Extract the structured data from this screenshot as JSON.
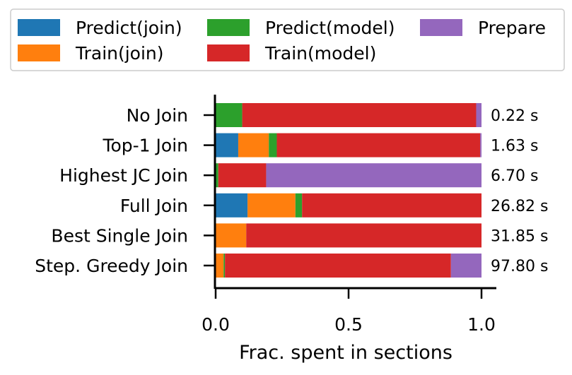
{
  "chart_data": {
    "type": "bar",
    "orientation": "horizontal",
    "stacked": true,
    "title": "",
    "xlabel": "Frac. spent in sections",
    "ylabel": "",
    "xlim": [
      0,
      1.05
    ],
    "xticks": [
      {
        "value": 0.0,
        "label": "0.0"
      },
      {
        "value": 0.5,
        "label": "0.5"
      },
      {
        "value": 1.0,
        "label": "1.0"
      }
    ],
    "legend_position": "top",
    "categories": [
      "No Join",
      "Top-1 Join",
      "Highest JC Join",
      "Full Join",
      "Best Single Join",
      "Step. Greedy Join"
    ],
    "runtime_labels": [
      "0.22 s",
      "1.63 s",
      "6.70 s",
      "26.82 s",
      "31.85 s",
      "97.80 s"
    ],
    "series": [
      {
        "name": "Predict(join)",
        "color": "#1f77b4",
        "values": [
          0.0,
          0.085,
          0.0,
          0.12,
          0.0,
          0.0
        ]
      },
      {
        "name": "Train(join)",
        "color": "#ff7f0e",
        "values": [
          0.0,
          0.115,
          0.0,
          0.18,
          0.115,
          0.03
        ]
      },
      {
        "name": "Predict(model)",
        "color": "#2ca02c",
        "values": [
          0.1,
          0.03,
          0.01,
          0.025,
          0.0,
          0.005
        ]
      },
      {
        "name": "Train(model)",
        "color": "#d62728",
        "values": [
          0.88,
          0.765,
          0.18,
          0.675,
          0.885,
          0.85
        ]
      },
      {
        "name": "Prepare",
        "color": "#9467bd",
        "values": [
          0.02,
          0.005,
          0.81,
          0.0,
          0.0,
          0.115
        ]
      }
    ]
  }
}
